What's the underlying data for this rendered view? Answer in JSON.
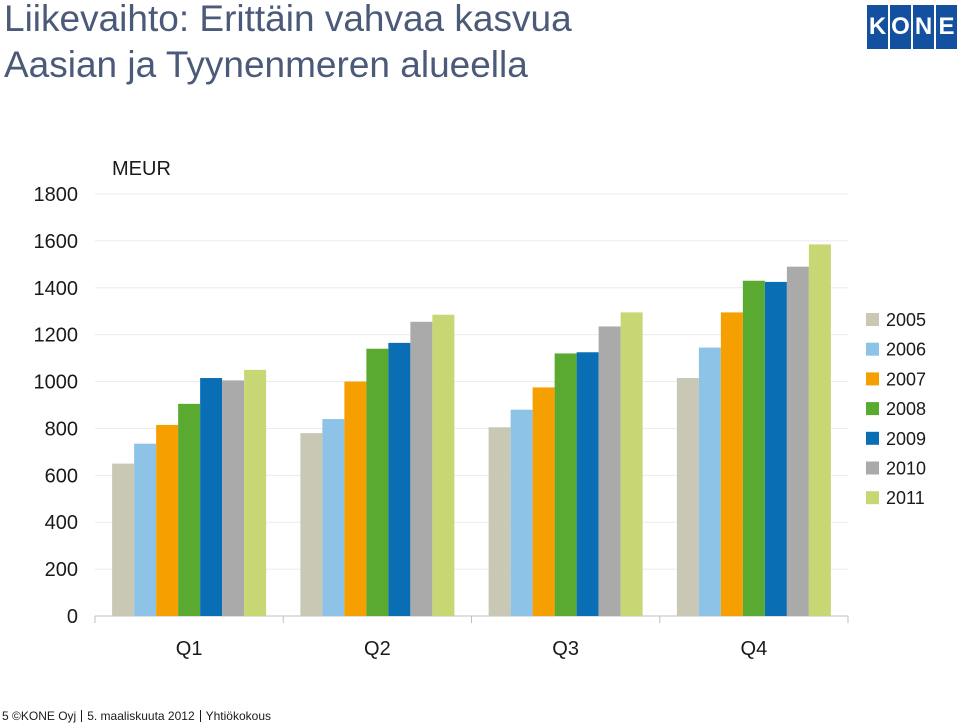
{
  "header": {
    "title_line1": "Liikevaihto: Erittäin vahvaa kasvua",
    "title_line2": "Aasian ja Tyynenmeren alueella",
    "logo_letters": [
      "K",
      "O",
      "N",
      "E"
    ],
    "logo_color": "#1450a0"
  },
  "footer": {
    "page_number": "5",
    "company": "©KONE Oyj",
    "date": "5. maaliskuuta 2012",
    "event": "Yhtiökokous"
  },
  "chart_data": {
    "type": "bar",
    "unit_label": "MEUR",
    "categories": [
      "Q1",
      "Q2",
      "Q3",
      "Q4"
    ],
    "ylim": [
      0,
      1800
    ],
    "yticks": [
      0,
      200,
      400,
      600,
      800,
      1000,
      1200,
      1400,
      1600,
      1800
    ],
    "legend_position": "right",
    "grid": true,
    "series": [
      {
        "name": "2005",
        "color": "#c8c8b4",
        "values": [
          650,
          780,
          805,
          1015
        ]
      },
      {
        "name": "2006",
        "color": "#8cc3e6",
        "values": [
          735,
          840,
          880,
          1145
        ]
      },
      {
        "name": "2007",
        "color": "#f5a000",
        "values": [
          815,
          1000,
          975,
          1295
        ]
      },
      {
        "name": "2008",
        "color": "#5aaa32",
        "values": [
          905,
          1140,
          1120,
          1430
        ]
      },
      {
        "name": "2009",
        "color": "#0a6eb4",
        "values": [
          1015,
          1165,
          1125,
          1425
        ]
      },
      {
        "name": "2010",
        "color": "#aaaaaa",
        "values": [
          1005,
          1255,
          1235,
          1490
        ]
      },
      {
        "name": "2011",
        "color": "#c8d774",
        "values": [
          1050,
          1285,
          1295,
          1585
        ]
      }
    ]
  }
}
